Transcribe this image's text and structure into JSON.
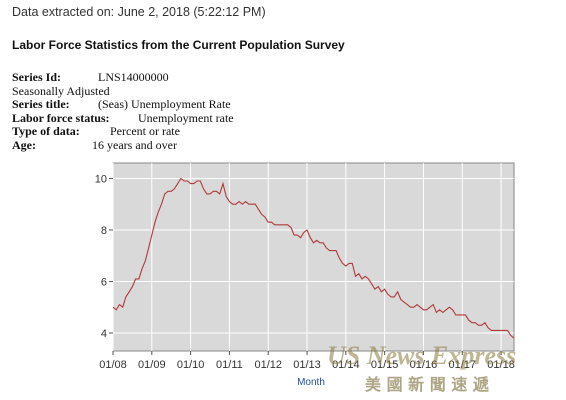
{
  "extracted_text": "Data extracted on: June 2, 2018 (5:22:12 PM)",
  "report_title": "Labor Force Statistics from the Current Population Survey",
  "series_info": [
    {
      "label": "Series Id:",
      "value": "LNS14000000"
    },
    {
      "label": "",
      "value": "Seasonally Adjusted"
    },
    {
      "label": "Series title:",
      "value": "(Seas) Unemployment Rate"
    },
    {
      "label": "Labor force status:",
      "value": "Unemployment rate"
    },
    {
      "label": "Type of data:",
      "value": "Percent or rate"
    },
    {
      "label": "Age:",
      "value": "16 years and over"
    }
  ],
  "colors": {
    "plot_bg": "#d9d9d9",
    "line": "#b03a3a",
    "axis_label": "#1f4e9c"
  },
  "watermark": {
    "line1": "US News Express",
    "line2": "美 國 新 聞 速 遞"
  },
  "chart_data": {
    "type": "line",
    "title": "",
    "xlabel": "Month",
    "ylabel": "",
    "ylim": [
      3.3,
      10.6
    ],
    "yticks": [
      4,
      6,
      8,
      10
    ],
    "x_start": "2008-01",
    "x_end": "2018-05",
    "xtick_labels": [
      "01/08",
      "01/09",
      "01/10",
      "01/11",
      "01/12",
      "01/13",
      "01/14",
      "01/15",
      "01/16",
      "01/17",
      "01/18"
    ],
    "grid": true,
    "legend": "none",
    "series": [
      {
        "name": "",
        "values": [
          5.0,
          4.9,
          5.1,
          5.0,
          5.4,
          5.6,
          5.8,
          6.1,
          6.1,
          6.5,
          6.8,
          7.3,
          7.8,
          8.3,
          8.7,
          9.0,
          9.4,
          9.5,
          9.5,
          9.6,
          9.8,
          10.0,
          9.9,
          9.9,
          9.8,
          9.8,
          9.9,
          9.9,
          9.6,
          9.4,
          9.4,
          9.5,
          9.5,
          9.4,
          9.8,
          9.3,
          9.1,
          9.0,
          9.0,
          9.1,
          9.0,
          9.1,
          9.0,
          9.0,
          9.0,
          8.8,
          8.6,
          8.5,
          8.3,
          8.3,
          8.2,
          8.2,
          8.2,
          8.2,
          8.2,
          8.1,
          7.8,
          7.8,
          7.7,
          7.9,
          8.0,
          7.7,
          7.5,
          7.6,
          7.5,
          7.5,
          7.3,
          7.2,
          7.2,
          7.2,
          6.9,
          6.7,
          6.6,
          6.7,
          6.7,
          6.2,
          6.3,
          6.1,
          6.2,
          6.1,
          5.9,
          5.7,
          5.8,
          5.6,
          5.7,
          5.5,
          5.4,
          5.4,
          5.6,
          5.3,
          5.2,
          5.1,
          5.0,
          5.0,
          5.1,
          5.0,
          4.9,
          4.9,
          5.0,
          5.1,
          4.8,
          4.9,
          4.8,
          4.9,
          5.0,
          4.9,
          4.7,
          4.7,
          4.7,
          4.7,
          4.5,
          4.4,
          4.4,
          4.3,
          4.3,
          4.4,
          4.2,
          4.1,
          4.1,
          4.1,
          4.1,
          4.1,
          4.1,
          3.9,
          3.8
        ]
      }
    ]
  }
}
